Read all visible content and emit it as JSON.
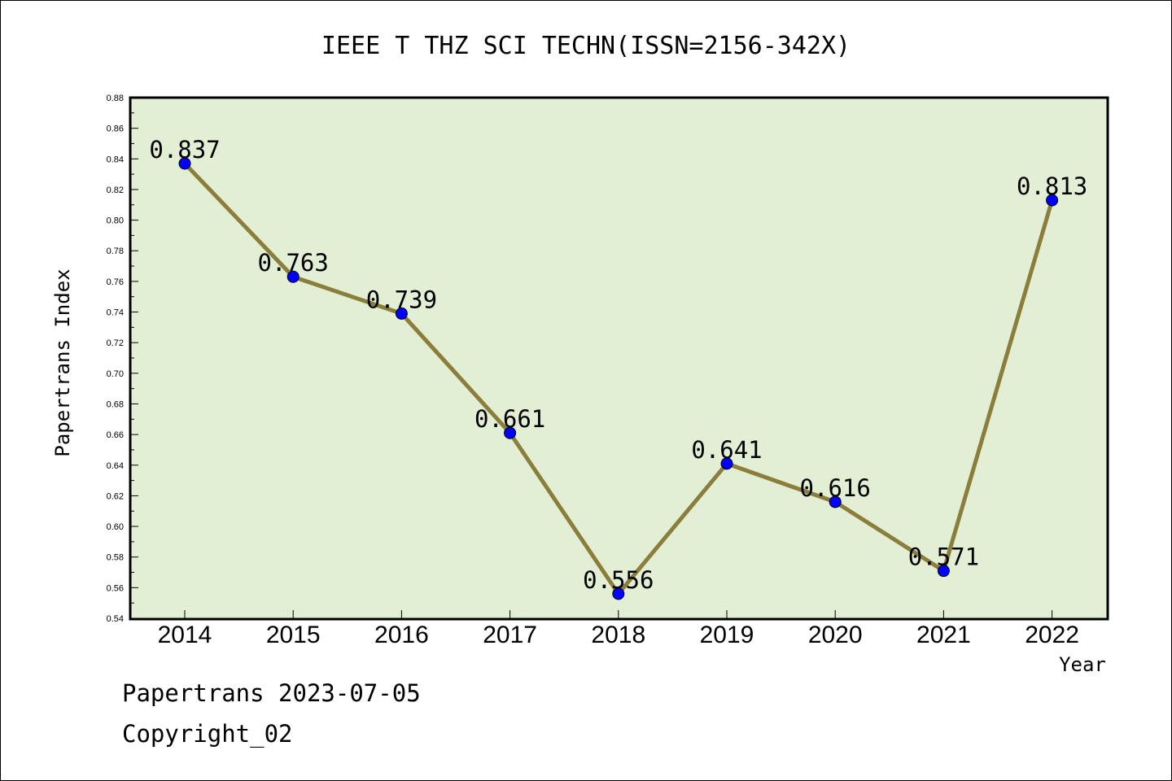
{
  "chart_data": {
    "type": "line",
    "title": "IEEE T THZ SCI TECHN(ISSN=2156-342X)",
    "xlabel": "Year",
    "ylabel": "Papertrans Index",
    "categories": [
      "2014",
      "2015",
      "2016",
      "2017",
      "2018",
      "2019",
      "2020",
      "2021",
      "2022"
    ],
    "values": [
      0.837,
      0.763,
      0.739,
      0.661,
      0.556,
      0.641,
      0.616,
      0.571,
      0.813
    ],
    "data_labels": [
      "0.837",
      "0.763",
      "0.739",
      "0.661",
      "0.556",
      "0.641",
      "0.616",
      "0.571",
      "0.813"
    ],
    "ylim": [
      0.54,
      0.88
    ],
    "yticks": [
      "0.54",
      "0.56",
      "0.58",
      "0.60",
      "0.62",
      "0.64",
      "0.66",
      "0.68",
      "0.70",
      "0.72",
      "0.74",
      "0.76",
      "0.78",
      "0.80",
      "0.82",
      "0.84",
      "0.86",
      "0.88"
    ],
    "grid": false,
    "colors": {
      "plot_background": "#e2efd5",
      "line": "#8b7d3a",
      "marker": "#0000ff"
    }
  },
  "footer": {
    "line1": "Papertrans 2023-07-05",
    "line2": "Copyright_02"
  }
}
